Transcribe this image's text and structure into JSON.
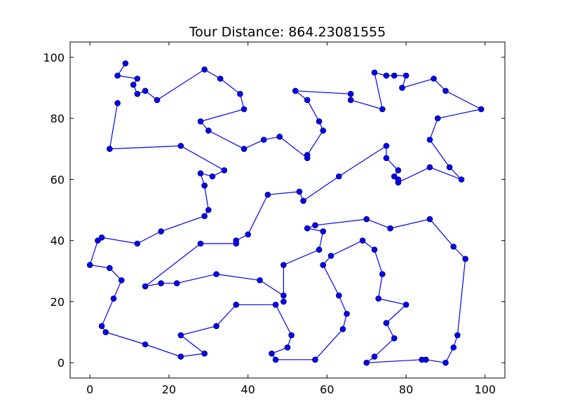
{
  "chart_data": {
    "type": "line",
    "title": "Tour Distance: 864.23081555",
    "xlabel": "",
    "ylabel": "",
    "xlim": [
      -5,
      105
    ],
    "ylim": [
      -5,
      105
    ],
    "xticks": [
      0,
      20,
      40,
      60,
      80,
      100
    ],
    "yticks": [
      0,
      20,
      40,
      60,
      80,
      100
    ],
    "grid": false,
    "legend": "none",
    "colors": {
      "line": "#0000ff",
      "marker": "#0000ff",
      "marker_edge": "#000000"
    },
    "series": [
      {
        "marker": "circle",
        "x": [
          9,
          7,
          12,
          11,
          12,
          14,
          17,
          29,
          33,
          38,
          39,
          28,
          30,
          39,
          44,
          48,
          55,
          55,
          59,
          58,
          55,
          52,
          66,
          66,
          74,
          72,
          75,
          77,
          80,
          79,
          87,
          90,
          99,
          88,
          86,
          91,
          94,
          86,
          78,
          78,
          77,
          78,
          75,
          75,
          63,
          54,
          53,
          45,
          40,
          37,
          37,
          28,
          14,
          18,
          22,
          32,
          43,
          49,
          49,
          49,
          58,
          59,
          55,
          57,
          70,
          76,
          86,
          92,
          95,
          93,
          92,
          90,
          85,
          84,
          70,
          72,
          77,
          75,
          80,
          73,
          74,
          72,
          69,
          61,
          59,
          63,
          65,
          64,
          57,
          47,
          46,
          50,
          51,
          47,
          37,
          32,
          23,
          29,
          23,
          14,
          4,
          3,
          6,
          8,
          5,
          0,
          2,
          3,
          12,
          18,
          29,
          30,
          29,
          28,
          31,
          34,
          23,
          5,
          7
        ],
        "y": [
          98,
          94,
          93,
          91,
          88,
          89,
          86,
          96,
          93,
          88,
          83,
          79,
          76,
          70,
          73,
          74,
          67,
          68,
          76,
          79,
          86,
          89,
          88,
          86,
          83,
          95,
          94,
          94,
          94,
          90,
          93,
          89,
          83,
          80,
          73,
          64,
          60,
          64,
          59,
          60,
          61,
          63,
          67,
          71,
          61,
          53,
          56,
          55,
          42,
          40,
          39,
          39,
          25,
          26,
          26,
          29,
          27,
          22,
          20,
          32,
          37,
          43,
          44,
          45,
          47,
          44,
          47,
          38,
          34,
          9,
          5,
          0,
          1,
          1,
          0,
          2,
          8,
          13,
          19,
          21,
          29,
          37,
          40,
          35,
          32,
          22,
          16,
          11,
          1,
          1,
          3,
          5,
          9,
          19,
          19,
          12,
          9,
          3,
          2,
          6,
          10,
          12,
          21,
          27,
          31,
          32,
          40,
          41,
          39,
          43,
          48,
          50,
          58,
          62,
          61,
          63,
          71,
          70,
          85
        ]
      }
    ]
  }
}
